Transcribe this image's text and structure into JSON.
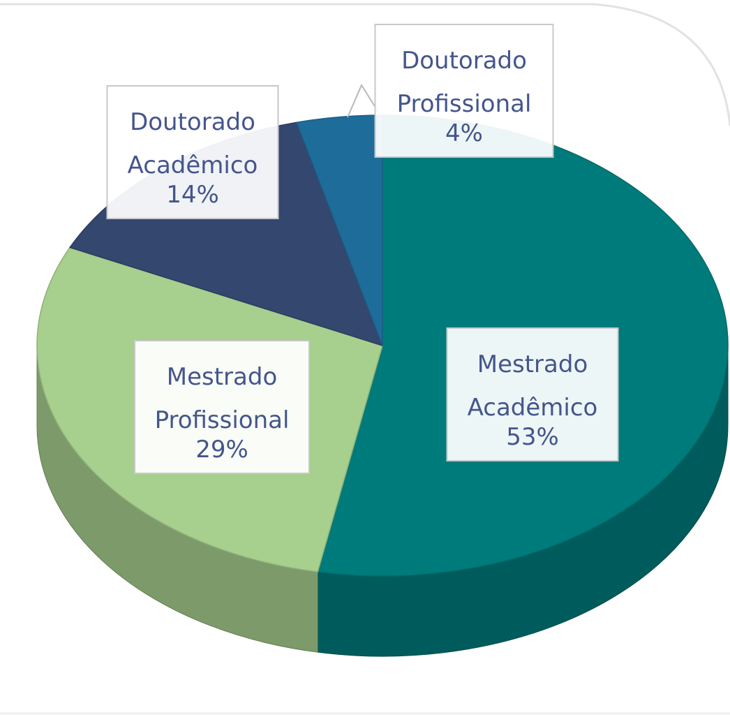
{
  "chart_data": {
    "type": "pie",
    "categories": [
      "Mestrado Acadêmico",
      "Mestrado Profissional",
      "Doutorado Acadêmico",
      "Doutorado Profissional"
    ],
    "values": [
      53,
      29,
      14,
      4
    ],
    "value_labels": [
      "53%",
      "29%",
      "14%",
      "4%"
    ],
    "colors": [
      "#007b7b",
      "#a7cf8d",
      "#34476f",
      "#1e6c9a"
    ]
  }
}
